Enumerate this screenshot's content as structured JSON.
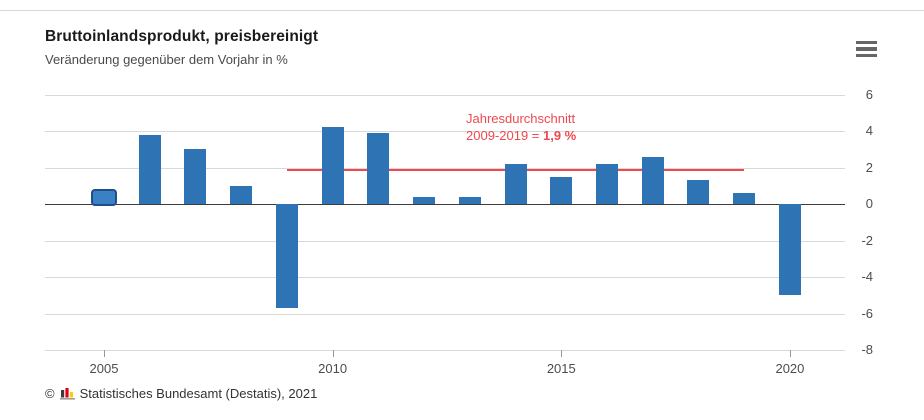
{
  "header": {
    "title": "Bruttoinlandsprodukt, preisbereinigt",
    "subtitle": "Veränderung gegenüber dem Vorjahr in %"
  },
  "menu": {
    "icon": "hamburger-menu-icon"
  },
  "chart_data": {
    "type": "bar",
    "title": "Bruttoinlandsprodukt, preisbereinigt",
    "subtitle": "Veränderung gegenüber dem Vorjahr in %",
    "unit": "%",
    "categories": [
      "2005",
      "2006",
      "2007",
      "2008",
      "2009",
      "2010",
      "2011",
      "2012",
      "2013",
      "2014",
      "2015",
      "2016",
      "2017",
      "2018",
      "2019",
      "2020"
    ],
    "values": [
      0.7,
      3.8,
      3.0,
      1.0,
      -5.7,
      4.2,
      3.9,
      0.4,
      0.4,
      2.2,
      1.5,
      2.2,
      2.6,
      1.3,
      0.6,
      -5.0
    ],
    "ylim": [
      -8,
      6
    ],
    "yticks": [
      6,
      4,
      2,
      0,
      -2,
      -4,
      -6,
      -8
    ],
    "xticks": [
      "2005",
      "2010",
      "2015",
      "2020"
    ],
    "grid": true,
    "legend": false,
    "yaxis_side": "right",
    "selected_category": "2005",
    "bar_color": "#2e74b5",
    "mean_line": {
      "value": 1.9,
      "from": "2009",
      "to": "2019",
      "color": "#f0484f",
      "label_line1": "Jahresdurchschnitt",
      "label_line2_prefix": "2009-2019 = ",
      "label_value": "1,9 %"
    }
  },
  "footer": {
    "copyright_symbol": "©",
    "source": "Statistisches Bundesamt (Destatis), 2021",
    "logo": "destatis-bar-chart-icon",
    "logo_colors": {
      "black": "#3c3c3b",
      "red": "#e10019",
      "gold": "#ffce00",
      "base": "#9c9c9c"
    }
  }
}
